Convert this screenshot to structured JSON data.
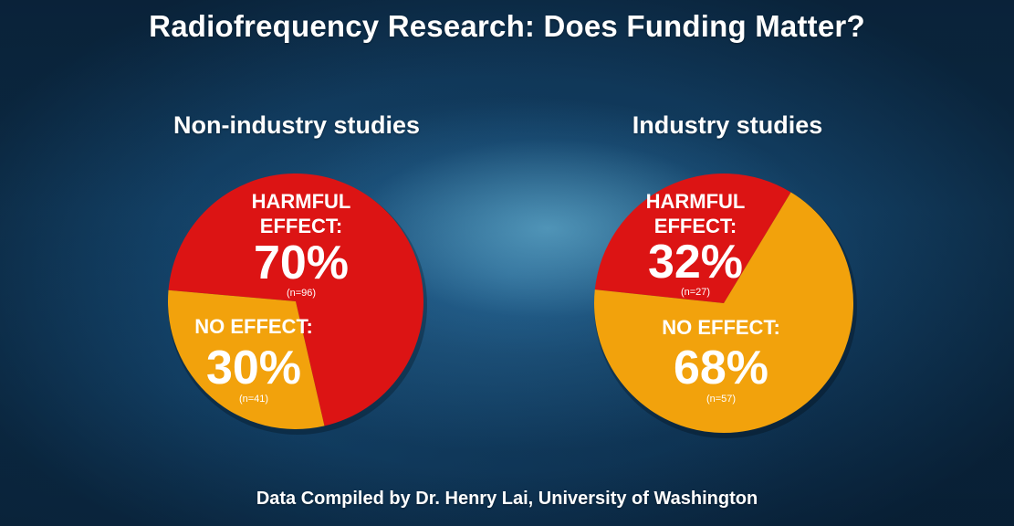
{
  "title": "Radiofrequency Research: Does Funding Matter?",
  "footer": "Data Compiled by Dr. Henry Lai, University of Washington",
  "colors": {
    "harmful": "#dc1414",
    "no_effect": "#f2a20c",
    "text": "#ffffff"
  },
  "chart_data": [
    {
      "type": "pie",
      "title": "Non-industry studies",
      "slices": [
        {
          "label": "HARMFUL EFFECT:",
          "percent_label": "70%",
          "value": 70,
          "n_label": "(n=96)",
          "color": "#dc1414"
        },
        {
          "label": "NO EFFECT:",
          "percent_label": "30%",
          "value": 30,
          "n_label": "(n=41)",
          "color": "#f2a20c"
        }
      ]
    },
    {
      "type": "pie",
      "title": "Industry studies",
      "slices": [
        {
          "label": "HARMFUL EFFECT:",
          "percent_label": "32%",
          "value": 32,
          "n_label": "(n=27)",
          "color": "#dc1414"
        },
        {
          "label": "NO EFFECT:",
          "percent_label": "68%",
          "value": 68,
          "n_label": "(n=57)",
          "color": "#f2a20c"
        }
      ]
    }
  ]
}
